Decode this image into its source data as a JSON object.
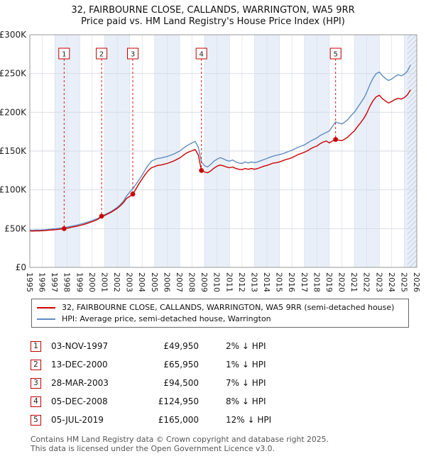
{
  "title": "32, FAIRBOURNE CLOSE, CALLANDS, WARRINGTON, WA5 9RR",
  "subtitle": "Price paid vs. HM Land Registry's House Price Index (HPI)",
  "chart_data": {
    "type": "line",
    "unit": "£K",
    "x_range": [
      1995,
      2026
    ],
    "y_range": [
      0,
      300
    ],
    "x_ticks": [
      1995,
      1996,
      1997,
      1998,
      1999,
      2000,
      2001,
      2002,
      2003,
      2004,
      2005,
      2006,
      2007,
      2008,
      2009,
      2010,
      2011,
      2012,
      2013,
      2014,
      2015,
      2016,
      2017,
      2018,
      2019,
      2020,
      2021,
      2022,
      2023,
      2024,
      2025,
      2026
    ],
    "y_ticks": [
      {
        "value": 0,
        "label": "£0"
      },
      {
        "value": 50,
        "label": "£50K"
      },
      {
        "value": 100,
        "label": "£100K"
      },
      {
        "value": 150,
        "label": "£150K"
      },
      {
        "value": 200,
        "label": "£200K"
      },
      {
        "value": 250,
        "label": "£250K"
      },
      {
        "value": 300,
        "label": "£300K"
      }
    ],
    "shaded_bands": [
      [
        1997,
        1999
      ],
      [
        2001,
        2003
      ],
      [
        2005,
        2007
      ],
      [
        2009,
        2011
      ],
      [
        2013,
        2015
      ],
      [
        2017,
        2019
      ],
      [
        2021,
        2023
      ],
      [
        2025,
        2026
      ]
    ],
    "future_start": 2025.25,
    "colors": {
      "price_paid": "#cc0000",
      "hpi": "#5f8dc0",
      "band": "#e9eff9",
      "grid": "#d6dae2",
      "hatch": "#b8c4d6",
      "axis": "#999999"
    },
    "series": [
      {
        "name": "hpi",
        "label": "HPI: Average price, semi-detached house, Warrington",
        "color_key": "hpi",
        "x_start": 1995,
        "x_step": 0.25,
        "values": [
          48,
          47.8,
          48.2,
          48,
          48.3,
          48.6,
          49,
          49.4,
          49.8,
          50.2,
          50.6,
          51,
          52,
          52.8,
          53.6,
          54.5,
          55.5,
          56.5,
          57.8,
          59,
          60.5,
          62,
          63.5,
          66.5,
          68,
          70,
          72,
          74.5,
          77.5,
          81,
          85.5,
          92,
          97,
          101.5,
          107,
          113,
          119,
          126,
          132,
          137,
          139,
          140.5,
          141,
          142,
          143,
          144.5,
          146,
          148,
          150,
          153,
          156,
          158.5,
          160.5,
          162.5,
          155,
          136,
          131,
          129.5,
          133,
          137,
          139.5,
          141.5,
          140,
          138,
          137,
          138.5,
          136,
          134.5,
          134,
          136,
          134.5,
          136,
          135,
          136,
          137.5,
          139,
          140.5,
          142,
          143.5,
          144.5,
          145.5,
          146.5,
          148,
          149.5,
          151,
          153,
          155,
          156.5,
          158,
          160.5,
          163,
          165,
          167,
          170,
          172,
          174,
          176,
          182,
          187.5,
          186,
          185,
          187.5,
          191,
          196,
          200,
          206,
          212,
          218,
          226,
          236,
          244,
          250,
          252,
          247,
          243.5,
          241,
          243,
          246,
          248.5,
          247,
          249,
          253,
          261
        ]
      },
      {
        "name": "price_paid",
        "label": "32, FAIRBOURNE CLOSE, CALLANDS, WARRINGTON, WA5 9RR (semi-detached house)",
        "color_key": "price_paid",
        "x_start": 1995,
        "x_step": 0.25,
        "values": [
          47,
          46.8,
          47.2,
          47,
          47.3,
          47.5,
          47.9,
          48.2,
          48.6,
          49,
          49.5,
          49.95,
          50.5,
          51.5,
          52.3,
          53,
          54,
          55,
          56.2,
          57.5,
          59,
          60.5,
          62.5,
          65.95,
          67,
          69,
          71,
          73.5,
          76,
          79.5,
          83.5,
          89,
          91.5,
          94.5,
          101,
          108,
          114,
          120,
          125,
          128.5,
          130,
          131.5,
          132,
          133,
          134,
          135.5,
          137,
          139,
          141,
          144,
          147,
          149,
          150.5,
          152,
          145,
          124.95,
          123,
          122,
          124.5,
          128,
          130.5,
          132,
          131,
          129.5,
          128.5,
          129.5,
          127.5,
          126.5,
          126,
          127.5,
          126.5,
          127.5,
          126.5,
          127.5,
          129,
          130.5,
          131.5,
          133,
          134.5,
          135,
          136,
          137.5,
          139,
          140,
          141.5,
          143.5,
          145.5,
          147,
          148.5,
          150.5,
          153,
          155,
          156.5,
          159.5,
          161.5,
          163,
          160.5,
          163,
          165,
          164,
          163.5,
          165.5,
          168.5,
          172.5,
          176,
          181.5,
          186.5,
          192,
          199,
          208,
          215,
          220,
          222,
          217.5,
          214.5,
          212,
          214,
          216.5,
          218,
          217,
          219,
          222.5,
          229
        ]
      }
    ],
    "sales": [
      {
        "n": "1",
        "x": 1997.75,
        "value": 49.95
      },
      {
        "n": "2",
        "x": 2000.75,
        "value": 65.95
      },
      {
        "n": "3",
        "x": 2003.25,
        "value": 94.5
      },
      {
        "n": "4",
        "x": 2008.75,
        "value": 124.95
      },
      {
        "n": "5",
        "x": 2019.5,
        "value": 165
      }
    ]
  },
  "legend": {
    "items": [
      {
        "label": "32, FAIRBOURNE CLOSE, CALLANDS, WARRINGTON, WA5 9RR (semi-detached house)",
        "color": "#cc0000"
      },
      {
        "label": "HPI: Average price, semi-detached house, Warrington",
        "color": "#5f8dc0"
      }
    ]
  },
  "table": {
    "rows": [
      {
        "n": "1",
        "date": "03-NOV-1997",
        "price": "£49,950",
        "delta": "2% ↓ HPI"
      },
      {
        "n": "2",
        "date": "13-DEC-2000",
        "price": "£65,950",
        "delta": "1% ↓ HPI"
      },
      {
        "n": "3",
        "date": "28-MAR-2003",
        "price": "£94,500",
        "delta": "7% ↓ HPI"
      },
      {
        "n": "4",
        "date": "05-DEC-2008",
        "price": "£124,950",
        "delta": "8% ↓ HPI"
      },
      {
        "n": "5",
        "date": "05-JUL-2019",
        "price": "£165,000",
        "delta": "12% ↓ HPI"
      }
    ]
  },
  "footer": {
    "line1": "Contains HM Land Registry data © Crown copyright and database right 2025.",
    "line2": "This data is licensed under the Open Government Licence v3.0."
  }
}
